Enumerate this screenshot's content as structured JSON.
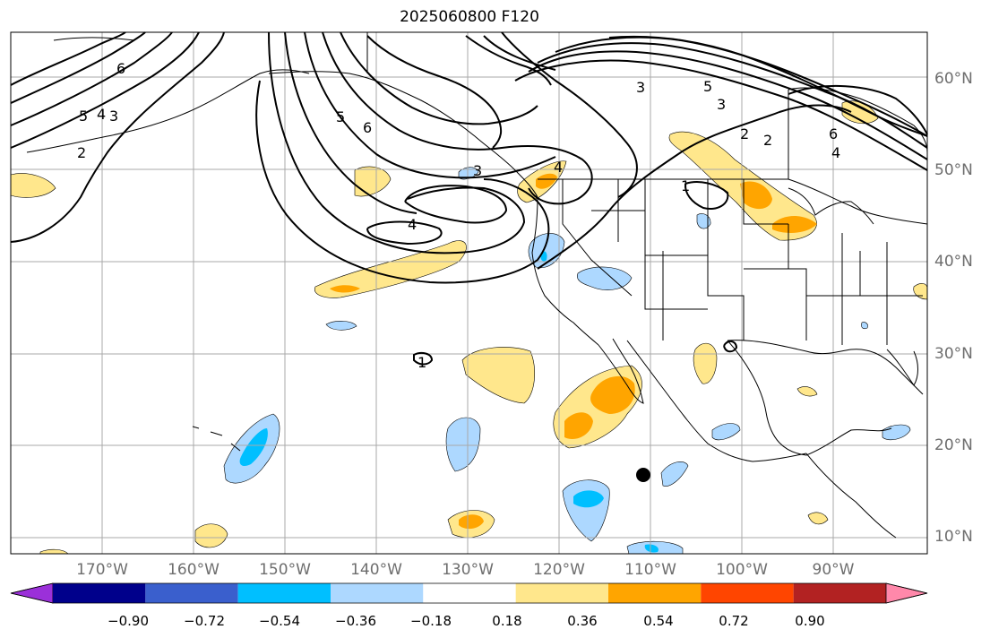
{
  "title": "2025060800 F120",
  "map": {
    "region": "North Pacific and North America",
    "projection": "PlateCarree",
    "lon_range": [
      -180,
      -78
    ],
    "lat_range": [
      7.8,
      65
    ],
    "gridlines": true,
    "field_filled": "shaded anomaly (units as on colorbar)",
    "field_contours": "black contour lines",
    "marker": {
      "lon": -110,
      "lat": 16.8
    }
  },
  "lon_labels": [
    "170°W",
    "160°W",
    "150°W",
    "140°W",
    "130°W",
    "120°W",
    "110°W",
    "100°W",
    "90°W"
  ],
  "lat_labels": [
    "60°N",
    "50°N",
    "40°N",
    "30°N",
    "20°N",
    "10°N"
  ],
  "contour_labels": [
    "6",
    "5",
    "4",
    "3",
    "2",
    "5",
    "6",
    "4",
    "3",
    "5",
    "3",
    "3",
    "6",
    "4",
    "2",
    "1",
    "2",
    "1",
    "4"
  ],
  "colorbar": {
    "colors": [
      "#9b30d9",
      "#00008b",
      "#3a5fcd",
      "#00bfff",
      "#add8ff",
      "#ffffff",
      "#ffe78c",
      "#ffa500",
      "#ff4500",
      "#b22222",
      "#ff88aa"
    ],
    "ticks": [
      "−0.90",
      "−0.72",
      "−0.54",
      "−0.36",
      "−0.18",
      "0.18",
      "0.36",
      "0.54",
      "0.72",
      "0.90"
    ],
    "extend": "both"
  }
}
